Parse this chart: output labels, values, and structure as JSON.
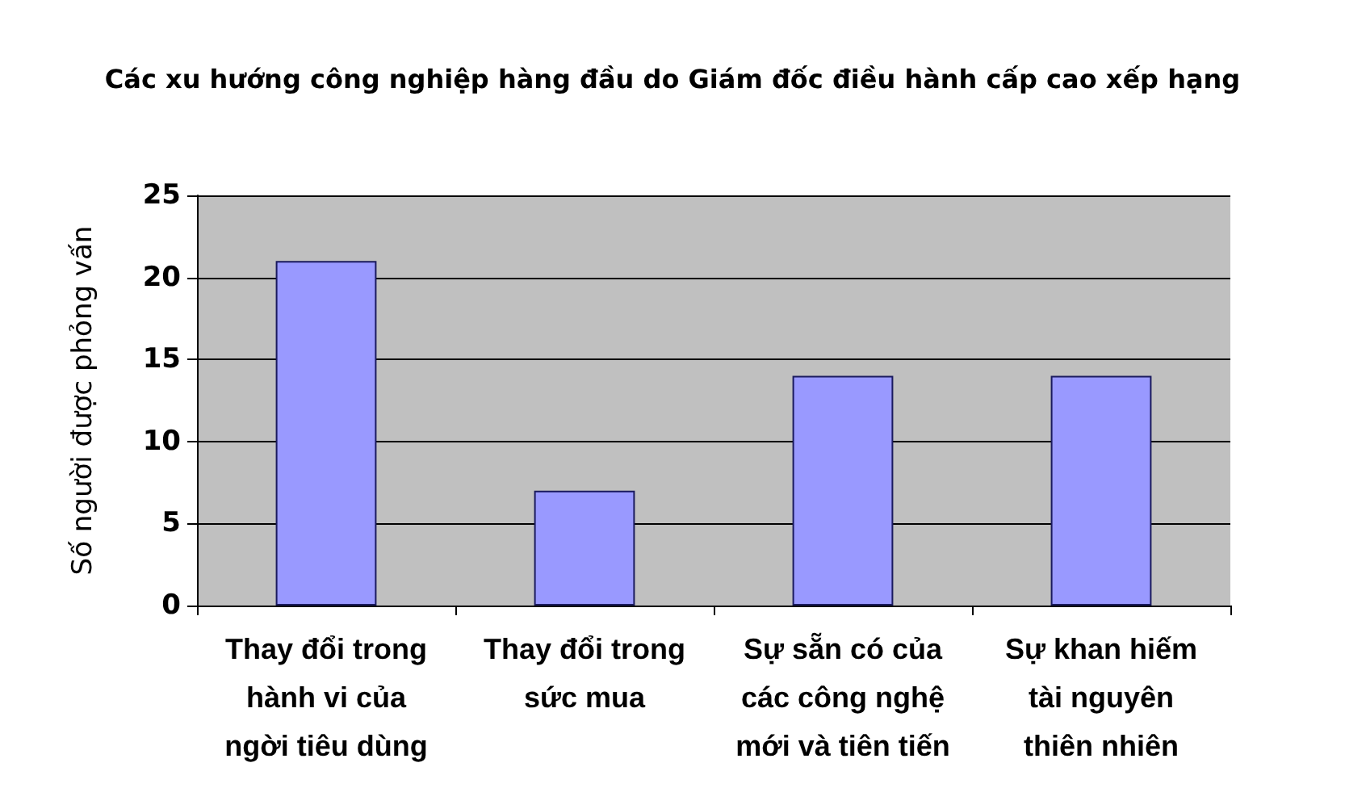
{
  "chart_data": {
    "type": "bar",
    "title": "Các xu hướng công nghiệp hàng đầu do Giám đốc điều hành cấp cao xếp hạng",
    "ylabel": "Số người được phỏng vấn",
    "categories": [
      "Thay đổi trong hành vi của ngời tiêu dùng",
      "Thay đổi trong sức mua",
      "Sự sẵn có của các công nghệ mới và tiên tiến",
      "Sự khan hiếm tài nguyên thiên nhiên"
    ],
    "values": [
      21,
      7,
      14,
      14
    ],
    "color": "#9999ff",
    "ylim": [
      0,
      25
    ],
    "yticks": [
      0,
      5,
      10,
      15,
      20,
      25
    ],
    "grid": "y"
  }
}
